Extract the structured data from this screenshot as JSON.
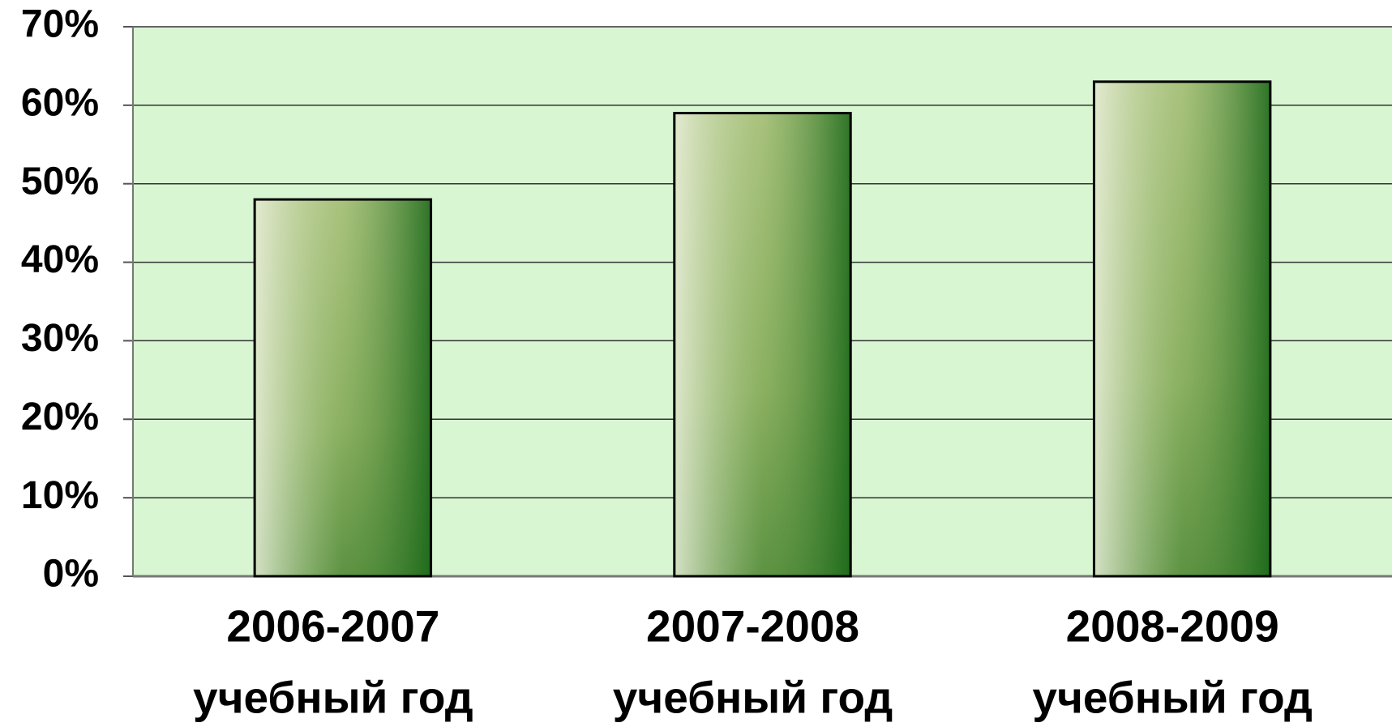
{
  "chart_data": {
    "type": "bar",
    "categories": [
      [
        "2006-2007",
        "учебный год"
      ],
      [
        "2007-2008",
        "учебный год"
      ],
      [
        "2008-2009",
        "учебный год"
      ]
    ],
    "values": [
      48,
      59,
      63
    ],
    "color": "#1f6b1c",
    "ylim": [
      0,
      70
    ],
    "yticks": [
      {
        "value": 0,
        "label": "0%"
      },
      {
        "value": 10,
        "label": "10%"
      },
      {
        "value": 20,
        "label": "20%"
      },
      {
        "value": 30,
        "label": "30%"
      },
      {
        "value": 40,
        "label": "40%"
      },
      {
        "value": 50,
        "label": "50%"
      },
      {
        "value": 60,
        "label": "60%"
      },
      {
        "value": 70,
        "label": "70%"
      }
    ],
    "grid": true
  }
}
